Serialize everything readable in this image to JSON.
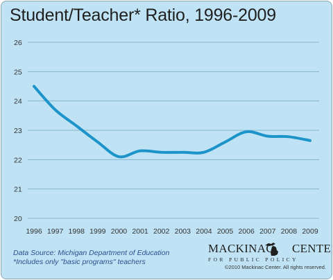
{
  "chart_data": {
    "type": "line",
    "title": "Student/Teacher* Ratio, 1996-2009",
    "xlabel": "",
    "ylabel": "",
    "x": [
      1996,
      1997,
      1998,
      1999,
      2000,
      2001,
      2002,
      2003,
      2004,
      2005,
      2006,
      2007,
      2008,
      2009
    ],
    "x_tick_labels": [
      "1996",
      "1997",
      "1998",
      "1999",
      "2000",
      "2001",
      "2002",
      "2003",
      "2004",
      "2005",
      "2006",
      "2007",
      "2008",
      "2009"
    ],
    "series": [
      {
        "values": [
          24.5,
          23.7,
          23.15,
          22.6,
          22.1,
          22.3,
          22.25,
          22.25,
          22.25,
          22.6,
          22.95,
          22.8,
          22.78,
          22.65
        ]
      }
    ],
    "ylim": [
      20,
      26
    ],
    "y_ticks": [
      20,
      21,
      22,
      23,
      24,
      25,
      26
    ],
    "grid": true,
    "legend": "none",
    "line_color": "#1c93c9",
    "grid_color": "#84b5cc"
  },
  "footer": {
    "source_line1": "Data Source: Michigan Department of Education",
    "source_line2": "*Includes only \"basic programs\" teachers",
    "logo_left": "MACKINAC",
    "logo_right": "CENTER",
    "logo_sub": "FOR PUBLIC POLICY",
    "copyright": "©2010 Mackinac Center. All rights reserved.",
    "logo_icon": "michigan-map-icon"
  }
}
